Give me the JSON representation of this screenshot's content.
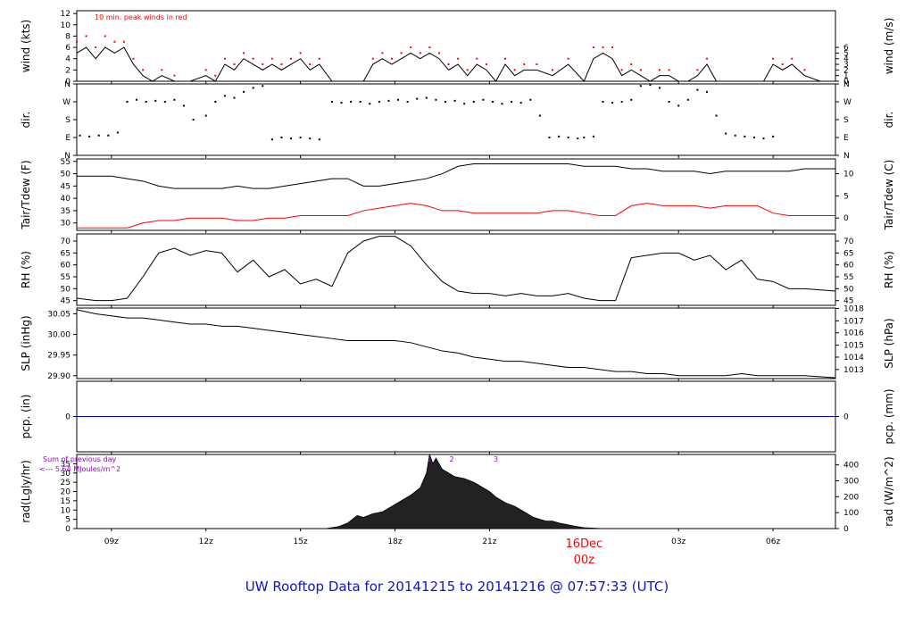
{
  "footer": {
    "title": "UW Rooftop Data for 20141215  to  20141216 @ 07:57:33  (UTC)"
  },
  "colors": {
    "series": "#000000",
    "red": "#ff0000",
    "blue": "#0000cc",
    "purple": "#9900cc",
    "footer": "#1010d0"
  },
  "time_axis": {
    "ticks": [
      "09z",
      "12z",
      "15z",
      "18z",
      "21z",
      "03z",
      "06z"
    ],
    "tick_hours": [
      9,
      12,
      15,
      18,
      21,
      27,
      30
    ],
    "day_label": "16Dec",
    "day_label2": "00z",
    "day_hour": 24,
    "range": [
      7.9,
      31.98
    ]
  },
  "chart_data": [
    {
      "type": "line",
      "ylabel": "wind (kts)",
      "ylabel_right": "wind (m/s)",
      "annotation": "10 min. peak winds in red",
      "ylim": [
        0,
        12.5
      ],
      "yticks": [
        "0",
        "2",
        "4",
        "6",
        "8",
        "10",
        "12"
      ],
      "ytick_values": [
        0,
        2,
        4,
        6,
        8,
        10,
        12
      ],
      "yticks_right": [
        "0",
        "1",
        "2",
        "3",
        "4",
        "5",
        "6"
      ],
      "ytick_right_values": [
        0,
        1,
        2,
        3,
        4,
        5,
        6
      ],
      "x": [
        7.9,
        8.2,
        8.5,
        8.8,
        9.1,
        9.4,
        9.7,
        10.0,
        10.3,
        10.6,
        11.0,
        11.5,
        12.0,
        12.3,
        12.6,
        12.9,
        13.2,
        13.5,
        13.8,
        14.1,
        14.4,
        14.7,
        15.0,
        15.3,
        15.6,
        16.0,
        16.5,
        17.0,
        17.3,
        17.6,
        17.9,
        18.2,
        18.5,
        18.8,
        19.1,
        19.4,
        19.7,
        20.0,
        20.3,
        20.6,
        20.9,
        21.2,
        21.5,
        21.8,
        22.1,
        22.5,
        23.0,
        23.5,
        24.0,
        24.3,
        24.6,
        24.9,
        25.2,
        25.5,
        25.8,
        26.1,
        26.4,
        26.7,
        27.0,
        27.3,
        27.6,
        27.9,
        28.2,
        28.5,
        28.8,
        29.1,
        29.4,
        29.7,
        30.0,
        30.3,
        30.6,
        31.0,
        31.5,
        31.98
      ],
      "series": [
        {
          "values": [
            5,
            6,
            4,
            6,
            5,
            6,
            3,
            1,
            0,
            1,
            0,
            0,
            1,
            0,
            3,
            2,
            4,
            3,
            2,
            3,
            2,
            3,
            4,
            2,
            3,
            0,
            0,
            0,
            3,
            4,
            3,
            4,
            5,
            4,
            5,
            4,
            2,
            3,
            1,
            3,
            2,
            0,
            3,
            1,
            2,
            2,
            1,
            3,
            0,
            4,
            5,
            4,
            1,
            2,
            1,
            0,
            1,
            1,
            0,
            0,
            1,
            3,
            0,
            0,
            0,
            0,
            0,
            0,
            3,
            2,
            3,
            1,
            0,
            0
          ]
        },
        {
          "values": [
            7,
            8,
            6,
            8,
            7,
            7,
            4,
            2,
            0,
            2,
            1,
            0,
            2,
            1,
            4,
            3,
            5,
            4,
            3,
            4,
            3,
            4,
            5,
            3,
            4,
            0,
            0,
            0,
            4,
            5,
            4,
            5,
            6,
            5,
            6,
            5,
            3,
            4,
            2,
            4,
            3,
            0,
            4,
            2,
            3,
            3,
            2,
            4,
            0,
            6,
            6,
            6,
            2,
            3,
            2,
            0,
            2,
            2,
            0,
            0,
            2,
            4,
            0,
            0,
            0,
            0,
            0,
            0,
            4,
            3,
            4,
            2,
            0,
            0
          ]
        }
      ]
    },
    {
      "type": "scatter",
      "ylabel": "dir.",
      "ylabel_right": "dir.",
      "ylim": [
        0,
        360
      ],
      "yticks": [
        "N",
        "E",
        "S",
        "W",
        "N"
      ],
      "ytick_values": [
        0,
        90,
        180,
        270,
        360
      ],
      "yticks_right": [
        "N",
        "E",
        "S",
        "W",
        "N"
      ],
      "ytick_right_values": [
        0,
        90,
        180,
        270,
        360
      ],
      "x": [
        8.0,
        8.3,
        8.6,
        8.9,
        9.2,
        9.5,
        9.8,
        10.1,
        10.4,
        10.7,
        11.0,
        11.3,
        11.6,
        12.0,
        12.3,
        12.6,
        12.9,
        13.2,
        13.5,
        13.8,
        14.1,
        14.4,
        14.7,
        15.0,
        15.3,
        15.6,
        16.0,
        16.3,
        16.6,
        16.9,
        17.2,
        17.5,
        17.8,
        18.1,
        18.4,
        18.7,
        19.0,
        19.3,
        19.6,
        19.9,
        20.2,
        20.5,
        20.8,
        21.1,
        21.4,
        21.7,
        22.0,
        22.3,
        22.6,
        22.9,
        23.2,
        23.5,
        23.8,
        24.0,
        24.3,
        24.6,
        24.9,
        25.2,
        25.5,
        25.8,
        26.1,
        26.4,
        26.7,
        27.0,
        27.3,
        27.6,
        27.9,
        28.2,
        28.5,
        28.8,
        29.1,
        29.4,
        29.7,
        30.0,
        30.3,
        30.6,
        30.9,
        31.2,
        31.5,
        31.8
      ],
      "series": [
        {
          "name": "",
          "values": [
            100,
            95,
            100,
            100,
            115,
            270,
            280,
            270,
            275,
            270,
            280,
            250,
            180,
            200,
            270,
            300,
            290,
            320,
            340,
            350,
            80,
            90,
            85,
            90,
            85,
            80,
            270,
            265,
            270,
            270,
            260,
            270,
            275,
            280,
            270,
            285,
            290,
            280,
            270,
            275,
            260,
            270,
            280,
            270,
            260,
            270,
            265,
            280,
            200,
            90,
            95,
            90,
            85,
            90,
            95,
            270,
            265,
            270,
            280,
            350,
            355,
            340,
            270,
            250,
            280,
            330,
            320,
            200,
            110,
            100,
            95,
            90,
            85,
            95
          ]
        }
      ]
    },
    {
      "type": "line",
      "ylabel": "Tair/Tdew (F)",
      "ylabel_right": "Tair/Tdew (C)",
      "ylim": [
        27,
        56
      ],
      "yticks": [
        "30",
        "35",
        "40",
        "45",
        "50",
        "55"
      ],
      "ytick_values": [
        30,
        35,
        40,
        45,
        50,
        55
      ],
      "yticks_right": [
        "0",
        "5",
        "10"
      ],
      "ytick_right_values": [
        32,
        41,
        50
      ],
      "x": [
        7.9,
        8.5,
        9.0,
        9.5,
        10.0,
        10.5,
        11.0,
        11.5,
        12.0,
        12.5,
        13.0,
        13.5,
        14.0,
        14.5,
        15.0,
        15.5,
        16.0,
        16.5,
        17.0,
        17.5,
        18.0,
        18.5,
        19.0,
        19.5,
        20.0,
        20.5,
        21.0,
        21.5,
        22.0,
        22.5,
        23.0,
        23.5,
        24.0,
        24.5,
        25.0,
        25.5,
        26.0,
        26.5,
        27.0,
        27.5,
        28.0,
        28.5,
        29.0,
        29.5,
        30.0,
        30.5,
        31.0,
        31.98
      ],
      "series": [
        {
          "name": "Tair",
          "values": [
            49,
            49,
            49,
            48,
            47,
            45,
            44,
            44,
            44,
            44,
            45,
            44,
            44,
            45,
            46,
            47,
            48,
            48,
            45,
            45,
            46,
            47,
            48,
            50,
            53,
            54,
            54,
            54,
            54,
            54,
            54,
            54,
            53,
            53,
            53,
            52,
            52,
            51,
            51,
            51,
            50,
            51,
            51,
            51,
            51,
            51,
            52,
            52
          ]
        },
        {
          "name": "Tdew",
          "values": [
            28,
            28,
            28,
            28,
            30,
            31,
            31,
            32,
            32,
            32,
            31,
            31,
            32,
            32,
            33,
            33,
            33,
            33,
            35,
            36,
            37,
            38,
            37,
            35,
            35,
            34,
            34,
            34,
            34,
            34,
            35,
            35,
            34,
            33,
            33,
            37,
            38,
            37,
            37,
            37,
            36,
            37,
            37,
            37,
            34,
            33,
            33,
            33
          ]
        }
      ]
    },
    {
      "type": "line",
      "ylabel": "RH (%)",
      "ylabel_right": "RH (%)",
      "ylim": [
        43,
        73
      ],
      "yticks": [
        "45",
        "50",
        "55",
        "60",
        "65",
        "70"
      ],
      "ytick_values": [
        45,
        50,
        55,
        60,
        65,
        70
      ],
      "yticks_right": [
        "45",
        "50",
        "55",
        "60",
        "65",
        "70"
      ],
      "ytick_right_values": [
        45,
        50,
        55,
        60,
        65,
        70
      ],
      "x": [
        7.9,
        8.5,
        9.0,
        9.5,
        10.0,
        10.5,
        11.0,
        11.5,
        12.0,
        12.5,
        13.0,
        13.5,
        14.0,
        14.5,
        15.0,
        15.5,
        16.0,
        16.5,
        17.0,
        17.5,
        18.0,
        18.5,
        19.0,
        19.5,
        20.0,
        20.5,
        21.0,
        21.5,
        22.0,
        22.5,
        23.0,
        23.5,
        24.0,
        24.5,
        25.0,
        25.5,
        26.0,
        26.5,
        27.0,
        27.5,
        28.0,
        28.5,
        29.0,
        29.5,
        30.0,
        30.5,
        31.0,
        31.98
      ],
      "series": [
        {
          "name": "",
          "values": [
            46,
            45,
            45,
            46,
            55,
            65,
            67,
            64,
            66,
            65,
            57,
            62,
            55,
            58,
            52,
            54,
            51,
            65,
            70,
            72,
            72,
            68,
            60,
            53,
            49,
            48,
            48,
            47,
            48,
            47,
            47,
            48,
            46,
            45,
            45,
            63,
            64,
            65,
            65,
            62,
            64,
            58,
            62,
            54,
            53,
            50,
            50,
            49
          ]
        }
      ]
    },
    {
      "type": "line",
      "ylabel": "SLP (inHg)",
      "ylabel_right": "SLP (hPa)",
      "ylim": [
        29.893,
        30.064
      ],
      "yticks": [
        "29.90",
        "29.95",
        "30.00",
        "30.05"
      ],
      "ytick_values": [
        29.9,
        29.95,
        30.0,
        30.05
      ],
      "yticks_right": [
        "1013",
        "1014",
        "1015",
        "1016",
        "1017",
        "1018"
      ],
      "ytick_right_values": [
        29.915,
        29.945,
        29.974,
        30.004,
        30.033,
        30.063
      ],
      "x": [
        7.9,
        8.5,
        9.0,
        9.5,
        10.0,
        10.5,
        11.0,
        11.5,
        12.0,
        12.5,
        13.0,
        13.5,
        14.0,
        14.5,
        15.0,
        15.5,
        16.0,
        16.5,
        17.0,
        17.5,
        18.0,
        18.5,
        19.0,
        19.5,
        20.0,
        20.5,
        21.0,
        21.5,
        22.0,
        22.5,
        23.0,
        23.5,
        24.0,
        24.5,
        25.0,
        25.5,
        26.0,
        26.5,
        27.0,
        27.5,
        28.0,
        28.5,
        29.0,
        29.5,
        30.0,
        30.5,
        31.0,
        31.98
      ],
      "series": [
        {
          "name": "",
          "values": [
            30.06,
            30.05,
            30.045,
            30.04,
            30.04,
            30.035,
            30.03,
            30.025,
            30.025,
            30.02,
            30.02,
            30.015,
            30.01,
            30.005,
            30.0,
            29.995,
            29.99,
            29.985,
            29.985,
            29.985,
            29.985,
            29.98,
            29.97,
            29.96,
            29.955,
            29.945,
            29.94,
            29.935,
            29.935,
            29.93,
            29.925,
            29.92,
            29.92,
            29.915,
            29.91,
            29.91,
            29.905,
            29.905,
            29.9,
            29.9,
            29.9,
            29.9,
            29.905,
            29.9,
            29.9,
            29.9,
            29.9,
            29.895
          ]
        }
      ]
    },
    {
      "type": "line",
      "ylabel": "pcp. (in)",
      "ylabel_right": "pcp. (mm)",
      "ylim": [
        -1,
        1
      ],
      "yticks": [
        "0"
      ],
      "ytick_values": [
        0
      ],
      "yticks_right": [
        "0"
      ],
      "ytick_right_values": [
        0
      ],
      "x": [
        7.9,
        31.98
      ],
      "series": [
        {
          "name": "",
          "values": [
            0,
            0
          ]
        }
      ]
    },
    {
      "type": "area",
      "ylabel": "rad(Lgly/hr)",
      "ylabel_right": "rad (W/m^2)",
      "annotation": "Sum of previous day",
      "annotation2": "<--- 5.64 MJoules/m^2",
      "markers": [
        "1",
        "2",
        "3"
      ],
      "marker_hours": [
        19.1,
        19.8,
        21.2
      ],
      "ylim": [
        0,
        40
      ],
      "yticks": [
        "0",
        "5",
        "10",
        "15",
        "20",
        "25",
        "30",
        "35"
      ],
      "ytick_values": [
        0,
        5,
        10,
        15,
        20,
        25,
        30,
        35
      ],
      "yticks_right": [
        "0",
        "100",
        "200",
        "300",
        "400"
      ],
      "ytick_right_values": [
        0,
        8.6,
        17.2,
        25.8,
        34.4
      ],
      "x": [
        15.8,
        16.2,
        16.5,
        16.8,
        17.0,
        17.3,
        17.6,
        17.9,
        18.2,
        18.5,
        18.8,
        19.0,
        19.1,
        19.2,
        19.3,
        19.5,
        19.7,
        19.9,
        20.2,
        20.5,
        20.8,
        21.0,
        21.2,
        21.5,
        21.8,
        22.0,
        22.2,
        22.4,
        22.6,
        22.8,
        23.0,
        23.2,
        23.5,
        23.8,
        24.0,
        24.3,
        24.6
      ],
      "series": [
        {
          "name": "",
          "values": [
            0,
            1,
            3,
            7,
            6,
            8,
            9,
            12,
            15,
            18,
            22,
            30,
            40,
            35,
            38,
            32,
            30,
            28,
            27,
            25,
            22,
            20,
            17,
            14,
            12,
            10,
            8,
            6,
            5,
            4,
            4,
            3,
            2,
            1,
            0.5,
            0.2,
            0
          ]
        }
      ]
    }
  ]
}
